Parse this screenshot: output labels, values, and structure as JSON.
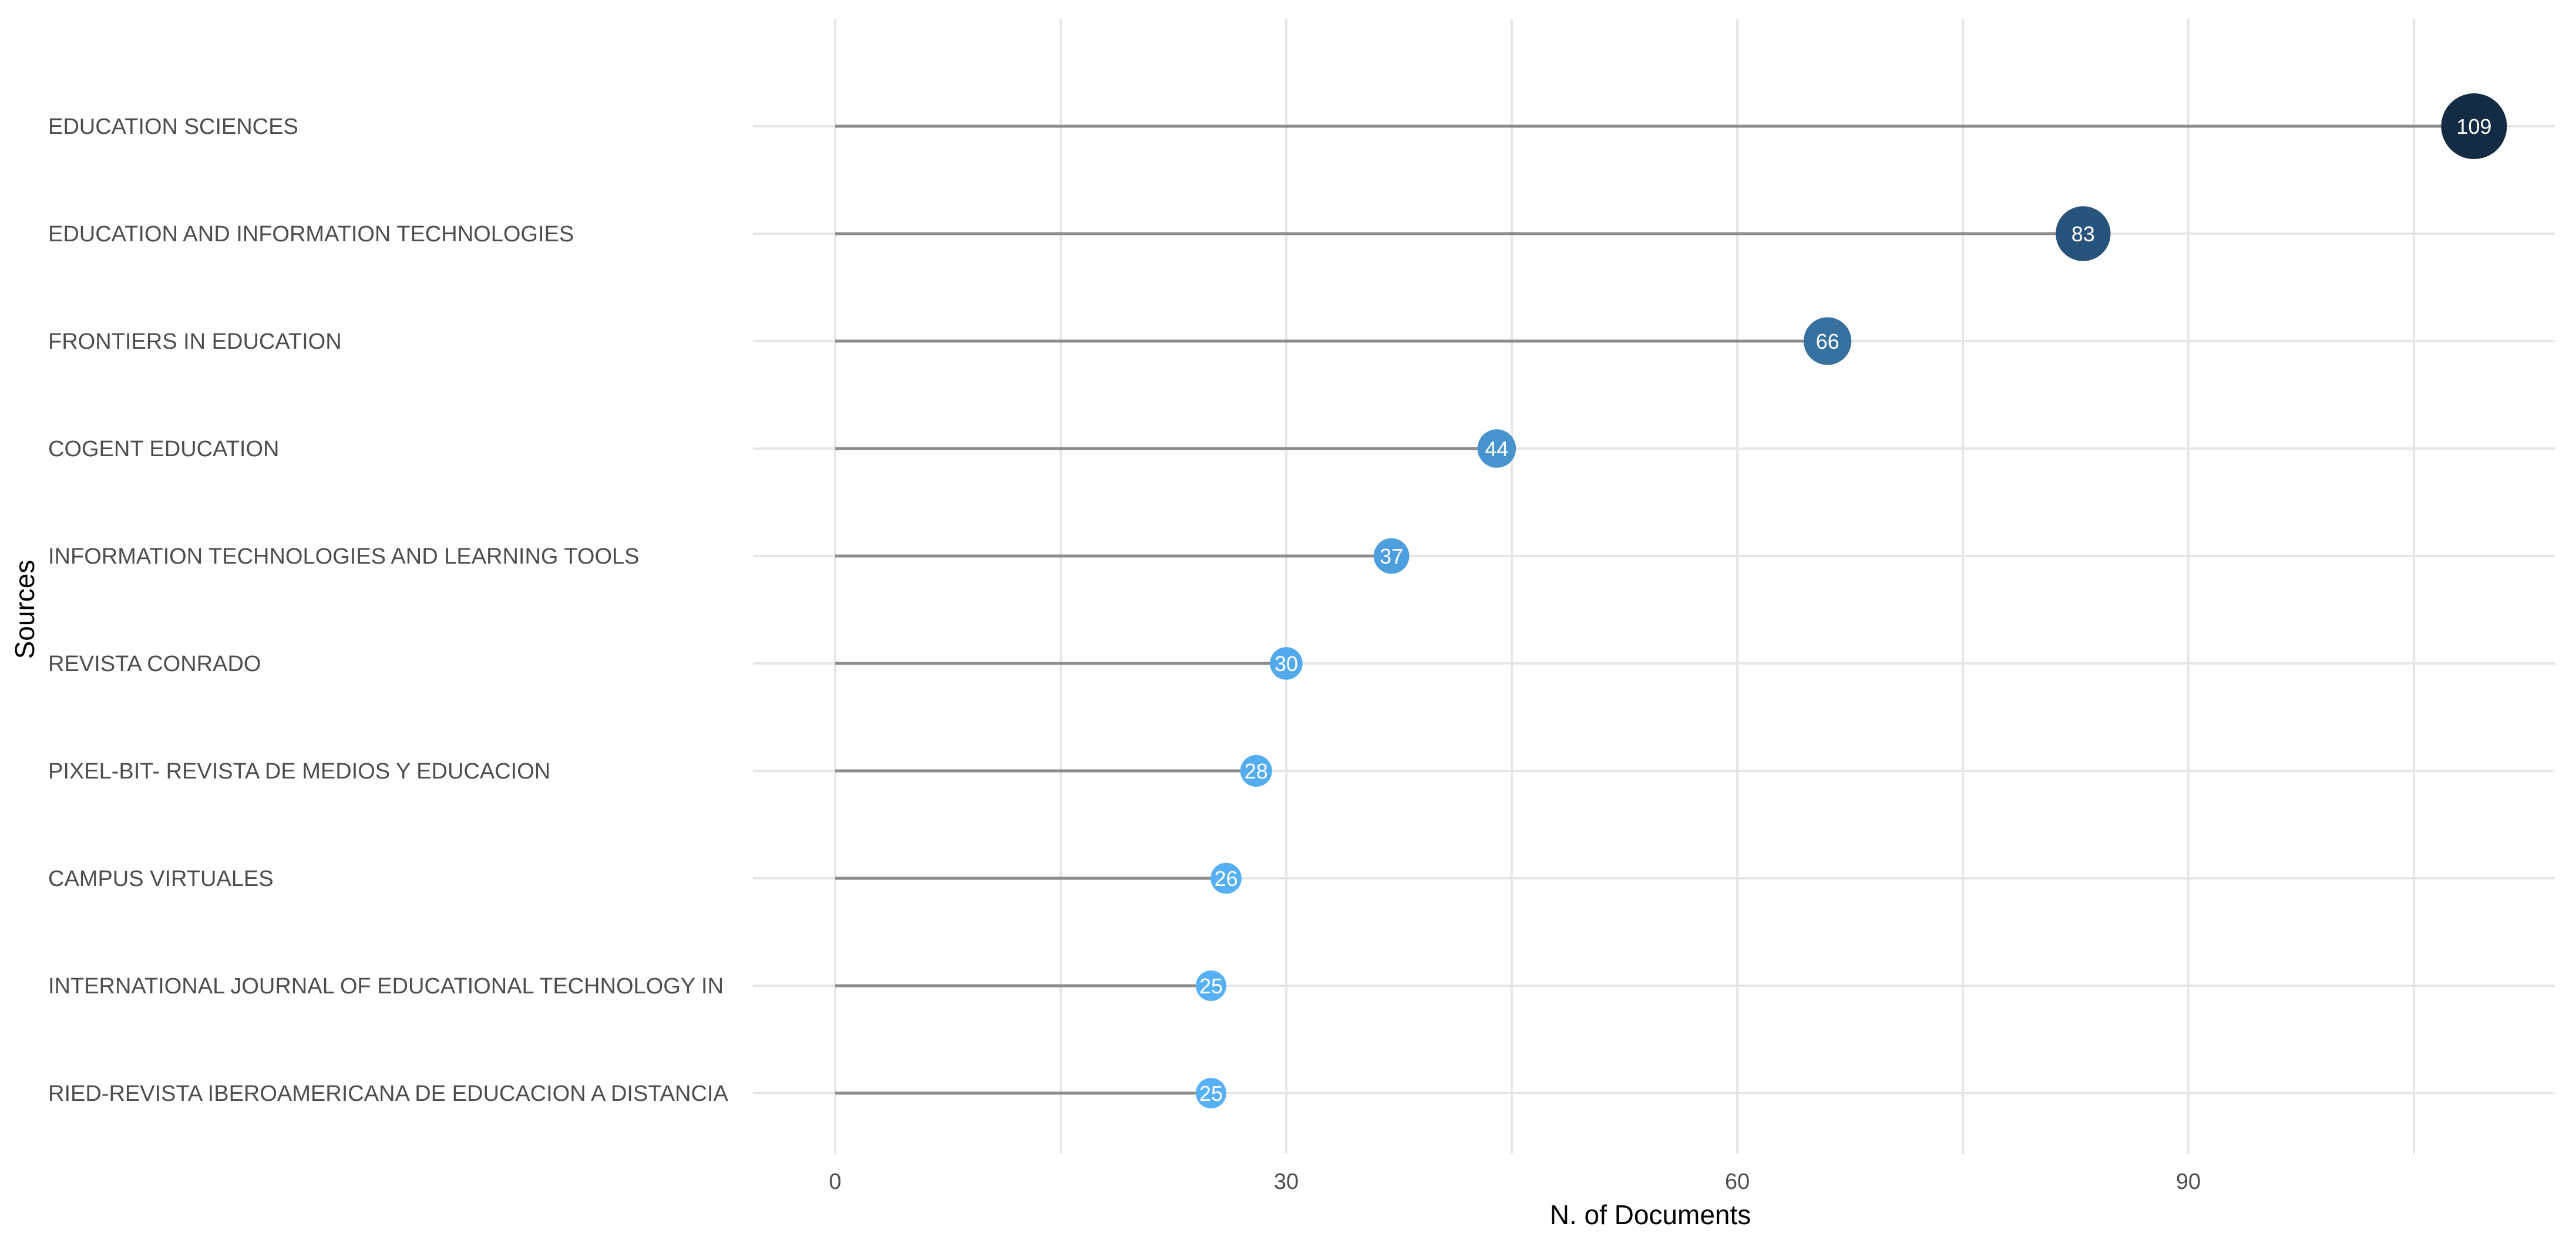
{
  "chart_data": {
    "type": "lollipop",
    "title": "",
    "xlabel": "N. of Documents",
    "ylabel": "Sources",
    "xlim": [
      0,
      114
    ],
    "x_ticks": [
      0,
      30,
      60,
      90
    ],
    "grid": true,
    "legend": "none",
    "categories": [
      "EDUCATION SCIENCES",
      "EDUCATION AND INFORMATION TECHNOLOGIES",
      "FRONTIERS IN EDUCATION",
      "COGENT EDUCATION",
      "INFORMATION TECHNOLOGIES AND LEARNING TOOLS",
      "REVISTA CONRADO",
      "PIXEL-BIT- REVISTA DE MEDIOS Y EDUCACION",
      "CAMPUS VIRTUALES",
      "INTERNATIONAL JOURNAL OF EDUCATIONAL TECHNOLOGY IN",
      "RIED-REVISTA IBEROAMERICANA DE EDUCACION A DISTANCIA"
    ],
    "values": [
      109,
      83,
      66,
      44,
      37,
      30,
      28,
      26,
      25,
      25
    ],
    "value_labels": [
      "109",
      "83",
      "66",
      "44",
      "37",
      "30",
      "28",
      "26",
      "25",
      "25"
    ],
    "tick_labels": [
      "0",
      "30",
      "60",
      "90"
    ],
    "colors": {
      "low": "#56B1F7",
      "high": "#132B43",
      "stem": "#8c8c8c",
      "grid": "#e6e6e6"
    }
  }
}
